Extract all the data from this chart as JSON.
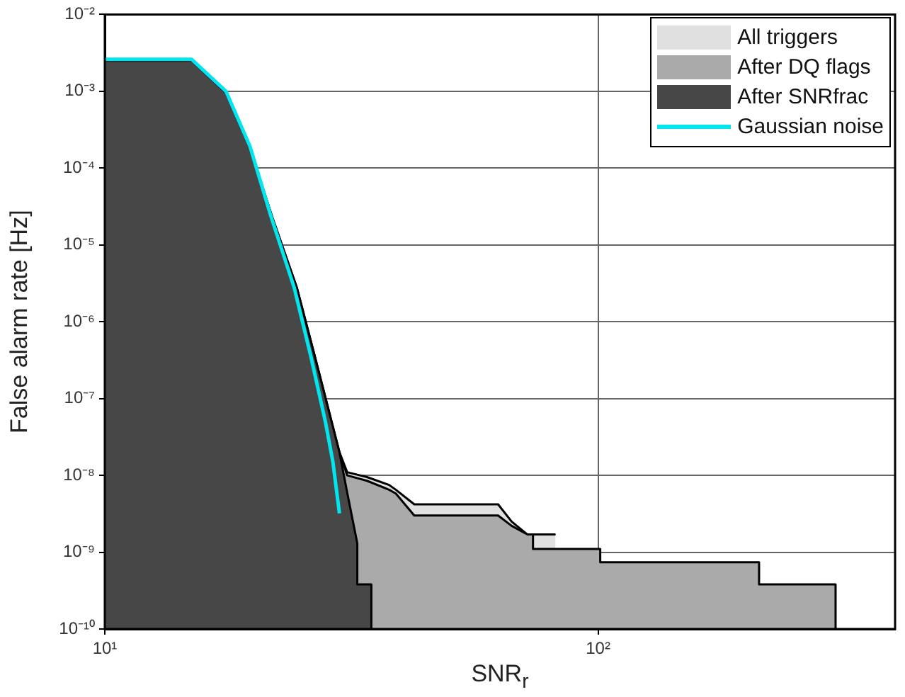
{
  "chart_data": {
    "type": "area",
    "xlabel": "SNR$_{r}$",
    "ylabel": "False alarm rate [Hz]",
    "log": "xy",
    "xlim": [
      10,
      400
    ],
    "ylim": [
      1e-10,
      0.01
    ],
    "xticks": [
      {
        "value": 10,
        "label": "10¹"
      },
      {
        "value": 100,
        "label": "10²"
      }
    ],
    "yticks": [
      {
        "value": 1e-10,
        "label": "10⁻¹⁰"
      },
      {
        "value": 1e-09,
        "label": "10⁻⁹"
      },
      {
        "value": 1e-08,
        "label": "10⁻⁸"
      },
      {
        "value": 1e-07,
        "label": "10⁻⁷"
      },
      {
        "value": 1e-06,
        "label": "10⁻⁶"
      },
      {
        "value": 1e-05,
        "label": "10⁻⁵"
      },
      {
        "value": 0.0001,
        "label": "10⁻⁴"
      },
      {
        "value": 0.001,
        "label": "10⁻³"
      },
      {
        "value": 0.01,
        "label": "10⁻²"
      }
    ],
    "grid": true,
    "legend": "top right",
    "series": [
      {
        "name": "Gaussian noise",
        "type": "line",
        "color": "#00e5ee",
        "x": [
          10,
          15,
          17.6,
          19.7,
          21.7,
          24.2,
          26.2,
          28,
          29,
          29.9
        ],
        "values": [
          0.0026,
          0.0026,
          0.001,
          0.00019,
          2.4e-05,
          2.8e-06,
          3.4e-07,
          5e-08,
          1.5e-08,
          3.2e-09
        ]
      },
      {
        "name": "After SNRfrac",
        "color": "#474747",
        "x": [
          10,
          15,
          17.6,
          19.7,
          21.9,
          24.5,
          26.7,
          29.9,
          31,
          32.5,
          32.5,
          34.7,
          34.7
        ],
        "values": [
          0.0025,
          0.0025,
          0.00095,
          0.00018,
          2.2e-05,
          2.8e-06,
          3.4e-07,
          2e-08,
          6e-09,
          1.3e-09,
          3.8e-10,
          3.8e-10,
          1e-10
        ]
      },
      {
        "name": "After DQ flags",
        "color": "#aaaaaa",
        "x": [
          10,
          15,
          17.6,
          19.7,
          21.9,
          24.5,
          26.7,
          29.9,
          31,
          34,
          37.7,
          38.9,
          42.4,
          62.7,
          66.8,
          71.9,
          73.8,
          73.8,
          101,
          101,
          212,
          212,
          303,
          303
        ],
        "values": [
          0.0025,
          0.0025,
          0.00095,
          0.00018,
          2.2e-05,
          2.8e-06,
          3.4e-07,
          2e-08,
          1e-08,
          8.5e-09,
          6.5e-09,
          5.8e-09,
          3e-09,
          3e-09,
          2.2e-09,
          1.7e-09,
          1.7e-09,
          1.1e-09,
          1.1e-09,
          7.4e-10,
          7.4e-10,
          3.8e-10,
          3.8e-10,
          1e-10
        ]
      },
      {
        "name": "All triggers",
        "color": "#e0e0e0",
        "x": [
          29.9,
          31,
          34,
          37.7,
          38.9,
          42.4,
          62.7,
          66.8,
          71.9,
          82
        ],
        "values": [
          2e-08,
          1.1e-08,
          9.5e-09,
          7.5e-09,
          6.5e-09,
          4.2e-09,
          4.2e-09,
          2.5e-09,
          1.7e-09,
          1.7e-09
        ]
      }
    ]
  }
}
